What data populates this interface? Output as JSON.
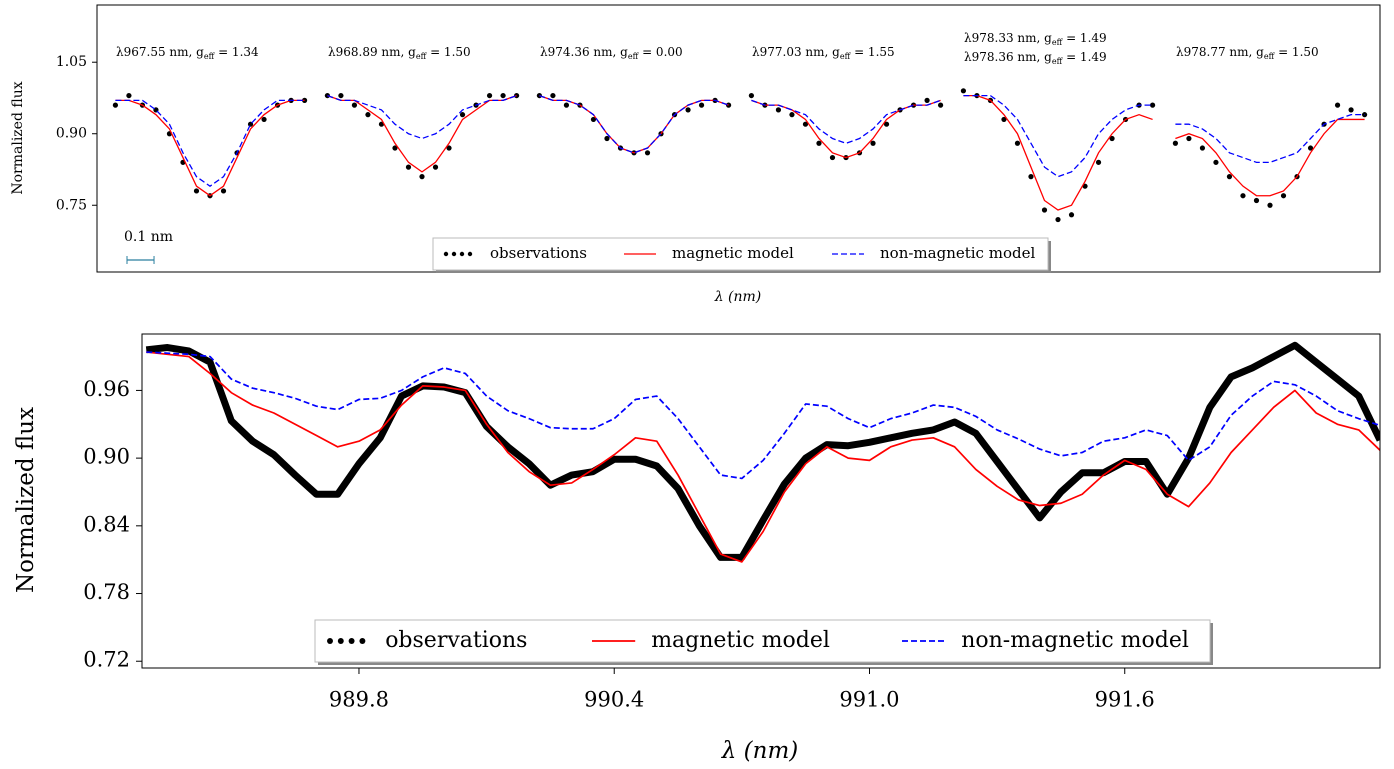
{
  "chart_data": [
    {
      "type": "segments",
      "ylabel": "Normalized flux",
      "xlabel": "λ (nm)",
      "ylim": [
        0.61,
        1.17
      ],
      "yticks": [
        1.05,
        {
          "value": 0.9,
          "label": "0.90"
        },
        0.75
      ],
      "x": [
        -0.35,
        -0.3,
        -0.25,
        -0.2,
        -0.15,
        -0.1,
        -0.05,
        0,
        0.05,
        0.1,
        0.15,
        0.2,
        0.25,
        0.3,
        0.35
      ],
      "xlim": [
        -0.37,
        0.37
      ],
      "scale_bar": {
        "label": "0.1 nm",
        "length": 0.1,
        "color": "#2a7f9f"
      },
      "series": [
        {
          "name": "observations",
          "color": "#000000",
          "style": "dots"
        },
        {
          "name": "magnetic model",
          "color": "#ff0000",
          "style": "solid"
        },
        {
          "name": "non-magnetic model",
          "color": "#0000ff",
          "style": "dashed"
        }
      ],
      "segments": [
        {
          "labels": [
            {
              "text": "λ967.55 nm, g",
              "sub": "eff",
              "tail": " = 1.34"
            }
          ],
          "values": [
            [
              0.96,
              0.98,
              0.96,
              0.95,
              0.9,
              0.84,
              0.78,
              0.77,
              0.78,
              0.86,
              0.92,
              0.93,
              0.96,
              0.97,
              0.97
            ],
            [
              0.97,
              0.97,
              0.96,
              0.94,
              0.91,
              0.85,
              0.79,
              0.77,
              0.79,
              0.85,
              0.91,
              0.94,
              0.96,
              0.97,
              0.97
            ],
            [
              0.97,
              0.97,
              0.97,
              0.95,
              0.92,
              0.86,
              0.81,
              0.79,
              0.81,
              0.86,
              0.92,
              0.95,
              0.97,
              0.97,
              0.97
            ]
          ]
        },
        {
          "labels": [
            {
              "text": "λ968.89 nm, g",
              "sub": "eff",
              "tail": " = 1.50"
            }
          ],
          "values": [
            [
              0.98,
              0.98,
              0.96,
              0.94,
              0.92,
              0.87,
              0.83,
              0.81,
              0.83,
              0.87,
              0.94,
              0.96,
              0.98,
              0.98,
              0.98
            ],
            [
              0.98,
              0.97,
              0.97,
              0.95,
              0.93,
              0.88,
              0.84,
              0.82,
              0.84,
              0.88,
              0.93,
              0.95,
              0.97,
              0.97,
              0.98
            ],
            [
              0.98,
              0.97,
              0.97,
              0.96,
              0.95,
              0.92,
              0.9,
              0.89,
              0.9,
              0.92,
              0.95,
              0.96,
              0.97,
              0.97,
              0.98
            ]
          ]
        },
        {
          "labels": [
            {
              "text": "λ974.36 nm, g",
              "sub": "eff",
              "tail": " = 0.00"
            }
          ],
          "values": [
            [
              0.98,
              0.98,
              0.96,
              0.96,
              0.93,
              0.89,
              0.87,
              0.86,
              0.86,
              0.9,
              0.94,
              0.95,
              0.96,
              0.97,
              0.96
            ],
            [
              0.98,
              0.97,
              0.97,
              0.96,
              0.94,
              0.9,
              0.87,
              0.86,
              0.87,
              0.9,
              0.94,
              0.96,
              0.97,
              0.97,
              0.96
            ],
            [
              0.98,
              0.97,
              0.97,
              0.96,
              0.94,
              0.9,
              0.87,
              0.86,
              0.87,
              0.9,
              0.94,
              0.96,
              0.97,
              0.97,
              0.96
            ]
          ]
        },
        {
          "labels": [
            {
              "text": "λ977.03 nm, g",
              "sub": "eff",
              "tail": " = 1.55"
            }
          ],
          "values": [
            [
              0.98,
              0.96,
              0.95,
              0.94,
              0.92,
              0.88,
              0.85,
              0.85,
              0.86,
              0.88,
              0.92,
              0.95,
              0.96,
              0.97,
              0.96
            ],
            [
              0.97,
              0.96,
              0.96,
              0.95,
              0.93,
              0.89,
              0.86,
              0.85,
              0.86,
              0.89,
              0.93,
              0.95,
              0.96,
              0.96,
              0.97
            ],
            [
              0.97,
              0.96,
              0.96,
              0.95,
              0.94,
              0.91,
              0.89,
              0.88,
              0.89,
              0.91,
              0.94,
              0.95,
              0.96,
              0.96,
              0.97
            ]
          ]
        },
        {
          "labels": [
            {
              "text": "λ978.33 nm, g",
              "sub": "eff",
              "tail": " = 1.49"
            },
            {
              "text": "λ978.36 nm, g",
              "sub": "eff",
              "tail": " = 1.49"
            }
          ],
          "values": [
            [
              0.99,
              0.98,
              0.97,
              0.93,
              0.88,
              0.81,
              0.74,
              0.72,
              0.73,
              0.79,
              0.84,
              0.89,
              0.93,
              0.96,
              0.96
            ],
            [
              0.98,
              0.98,
              0.97,
              0.94,
              0.9,
              0.83,
              0.76,
              0.74,
              0.75,
              0.8,
              0.86,
              0.9,
              0.93,
              0.94,
              0.93
            ],
            [
              0.98,
              0.98,
              0.98,
              0.96,
              0.93,
              0.88,
              0.83,
              0.81,
              0.82,
              0.85,
              0.9,
              0.93,
              0.95,
              0.96,
              0.96
            ]
          ]
        },
        {
          "labels": [
            {
              "text": "λ978.77 nm, g",
              "sub": "eff",
              "tail": " = 1.50"
            }
          ],
          "values": [
            [
              0.88,
              0.89,
              0.87,
              0.84,
              0.81,
              0.77,
              0.76,
              0.75,
              0.77,
              0.81,
              0.87,
              0.92,
              0.96,
              0.95,
              0.94
            ],
            [
              0.89,
              0.9,
              0.89,
              0.86,
              0.82,
              0.79,
              0.77,
              0.77,
              0.78,
              0.81,
              0.86,
              0.9,
              0.93,
              0.93,
              0.93
            ],
            [
              0.92,
              0.92,
              0.91,
              0.89,
              0.86,
              0.85,
              0.84,
              0.84,
              0.85,
              0.86,
              0.89,
              0.92,
              0.93,
              0.94,
              0.94
            ]
          ]
        }
      ]
    },
    {
      "type": "line",
      "ylabel": "Normalized flux",
      "xlabel": "λ (nm)",
      "ylim": [
        0.714,
        1.01
      ],
      "yticks": [
        0.96,
        {
          "value": 0.9,
          "label": "0.90"
        },
        0.84,
        0.78,
        0.72
      ],
      "xlim": [
        989.29,
        992.2
      ],
      "xticks": [
        989.8,
        990.4,
        {
          "value": 991.0,
          "label": "991.0"
        },
        991.6
      ],
      "x": [
        989.3,
        989.35,
        989.4,
        989.45,
        989.5,
        989.55,
        989.6,
        989.65,
        989.7,
        989.75,
        989.8,
        989.85,
        989.9,
        989.95,
        990.0,
        990.05,
        990.1,
        990.15,
        990.2,
        990.25,
        990.3,
        990.35,
        990.4,
        990.45,
        990.5,
        990.55,
        990.6,
        990.65,
        990.7,
        990.75,
        990.8,
        990.85,
        990.9,
        990.95,
        991.0,
        991.05,
        991.1,
        991.15,
        991.2,
        991.25,
        991.3,
        991.35,
        991.4,
        991.45,
        991.5,
        991.55,
        991.6,
        991.65,
        991.7,
        991.75,
        991.8,
        991.85,
        991.9,
        991.95,
        992.0,
        992.05,
        992.1,
        992.15,
        992.2
      ],
      "series": [
        {
          "name": "observations",
          "color": "#000000",
          "style": "thick",
          "values": [
            0.996,
            0.998,
            0.995,
            0.985,
            0.933,
            0.915,
            0.903,
            0.885,
            0.868,
            0.868,
            0.895,
            0.918,
            0.955,
            0.964,
            0.963,
            0.958,
            0.928,
            0.91,
            0.895,
            0.876,
            0.885,
            0.888,
            0.899,
            0.899,
            0.893,
            0.873,
            0.84,
            0.812,
            0.812,
            0.845,
            0.877,
            0.9,
            0.912,
            0.911,
            0.914,
            0.918,
            0.922,
            0.925,
            0.932,
            0.922,
            0.897,
            0.872,
            0.847,
            0.87,
            0.887,
            0.887,
            0.897,
            0.897,
            0.868,
            0.9,
            0.945,
            0.972,
            0.98,
            0.99,
            1.0,
            0.985,
            0.97,
            0.955,
            0.916
          ]
        },
        {
          "name": "magnetic model",
          "color": "#ff0000",
          "style": "solid",
          "values": [
            0.994,
            0.992,
            0.99,
            0.975,
            0.958,
            0.947,
            0.94,
            0.93,
            0.92,
            0.91,
            0.915,
            0.925,
            0.947,
            0.964,
            0.963,
            0.96,
            0.93,
            0.905,
            0.888,
            0.876,
            0.878,
            0.89,
            0.903,
            0.918,
            0.915,
            0.885,
            0.85,
            0.815,
            0.808,
            0.835,
            0.87,
            0.895,
            0.91,
            0.9,
            0.898,
            0.91,
            0.916,
            0.918,
            0.91,
            0.89,
            0.875,
            0.863,
            0.858,
            0.86,
            0.868,
            0.885,
            0.898,
            0.89,
            0.868,
            0.857,
            0.878,
            0.905,
            0.925,
            0.945,
            0.96,
            0.94,
            0.93,
            0.925,
            0.907
          ]
        },
        {
          "name": "non-magnetic model",
          "color": "#0000ff",
          "style": "dashed",
          "values": [
            0.994,
            0.993,
            0.992,
            0.99,
            0.97,
            0.962,
            0.958,
            0.953,
            0.946,
            0.943,
            0.952,
            0.953,
            0.96,
            0.972,
            0.98,
            0.975,
            0.955,
            0.942,
            0.935,
            0.927,
            0.926,
            0.926,
            0.935,
            0.952,
            0.955,
            0.935,
            0.91,
            0.885,
            0.882,
            0.898,
            0.922,
            0.948,
            0.946,
            0.935,
            0.927,
            0.935,
            0.94,
            0.947,
            0.945,
            0.937,
            0.925,
            0.917,
            0.908,
            0.902,
            0.905,
            0.915,
            0.918,
            0.925,
            0.92,
            0.898,
            0.91,
            0.938,
            0.955,
            0.968,
            0.965,
            0.955,
            0.942,
            0.935,
            0.929
          ]
        }
      ]
    }
  ]
}
